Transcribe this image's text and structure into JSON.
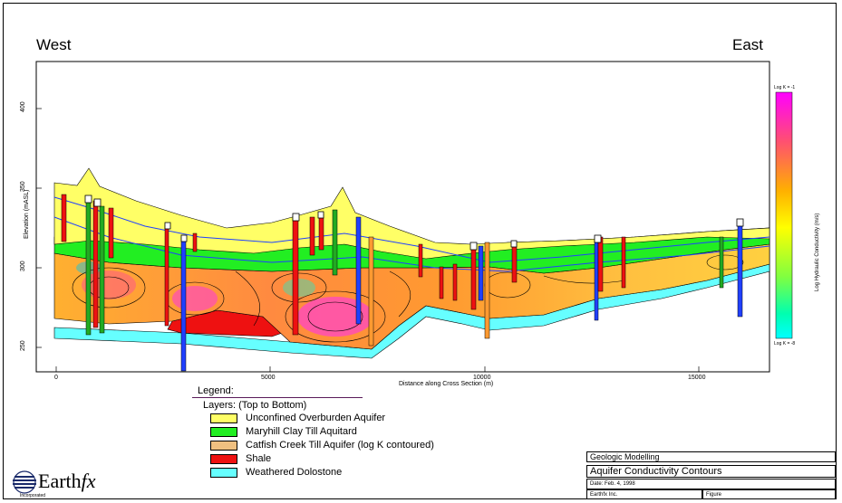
{
  "header": {
    "west_label": "West",
    "east_label": "East"
  },
  "axes": {
    "y_title": "Elevation (mASL)",
    "x_title": "Distance along Cross Section (m)",
    "x_ticks": [
      "0",
      "5000",
      "10000",
      "15000"
    ],
    "y_ticks": [
      "400",
      "350",
      "300",
      "250"
    ]
  },
  "colorbar": {
    "top_label": "Log K = -1",
    "bottom_label": "Log K = -8",
    "title": "Log Hydraulic Conductivity (m/s)",
    "colors": [
      "#ff00ff",
      "#ff6060",
      "#ffb000",
      "#ffff00",
      "#90ff30",
      "#00ffa0",
      "#00ffff"
    ]
  },
  "legend": {
    "title": "Legend:",
    "subtitle": "Layers: (Top to Bottom)",
    "items": [
      {
        "label": "Unconfined Overburden Aquifer",
        "color": "#ffff66"
      },
      {
        "label": "Maryhill Clay Till Aquitard",
        "color": "#22ee22"
      },
      {
        "label": "Catfish Creek Till Aquifer (log K contoured)",
        "color": "#f0c080"
      },
      {
        "label": "Shale",
        "color": "#ee1111"
      },
      {
        "label": "Weathered Dolostone",
        "color": "#66ffff"
      }
    ]
  },
  "logo": {
    "name_prefix": "Earth",
    "name_suffix": "fx",
    "tagline": "Incorporated"
  },
  "title_block": {
    "project": "Geologic Modelling",
    "title": "Aquifer Conductivity Contours",
    "date": "Date: Feb. 4, 1998",
    "company": "Earthfx Inc.",
    "figure_label": "Figure"
  }
}
